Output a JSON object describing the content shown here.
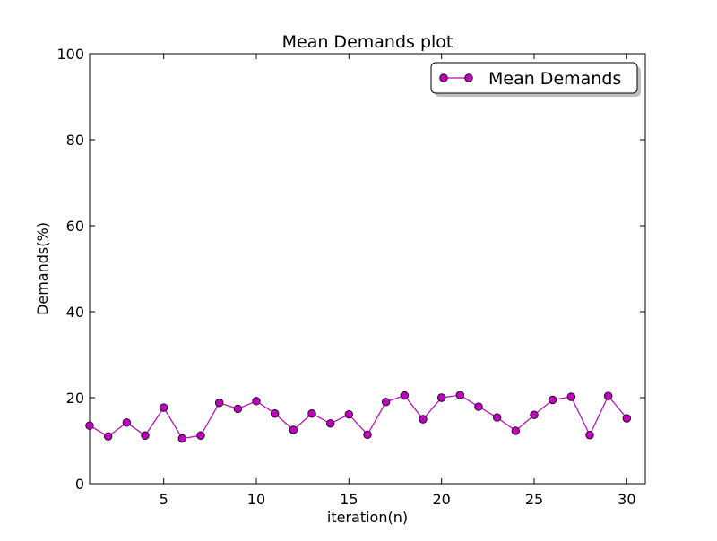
{
  "chart_data": {
    "type": "line",
    "title": "Mean Demands plot",
    "xlabel": "iteration(n)",
    "ylabel": "Demands(%)",
    "xlim": [
      1,
      31
    ],
    "ylim": [
      0,
      100
    ],
    "x_ticks": [
      5,
      10,
      15,
      20,
      25,
      30
    ],
    "y_ticks": [
      0,
      20,
      40,
      60,
      80,
      100
    ],
    "grid": false,
    "legend_position": "top-right",
    "series": [
      {
        "name": "Mean Demands",
        "color": "#bf00bf",
        "marker": "circle",
        "x": [
          1,
          2,
          3,
          4,
          5,
          6,
          7,
          8,
          9,
          10,
          11,
          12,
          13,
          14,
          15,
          16,
          17,
          18,
          19,
          20,
          21,
          22,
          23,
          24,
          25,
          26,
          27,
          28,
          29,
          30
        ],
        "y": [
          13.5,
          11.0,
          14.2,
          11.2,
          17.7,
          10.5,
          11.2,
          18.8,
          17.4,
          19.2,
          16.3,
          12.5,
          16.3,
          14.0,
          16.1,
          11.4,
          19.0,
          20.5,
          15.0,
          20.0,
          20.6,
          17.9,
          15.4,
          12.3,
          16.0,
          19.5,
          20.2,
          11.3,
          20.4,
          15.2
        ]
      }
    ]
  }
}
